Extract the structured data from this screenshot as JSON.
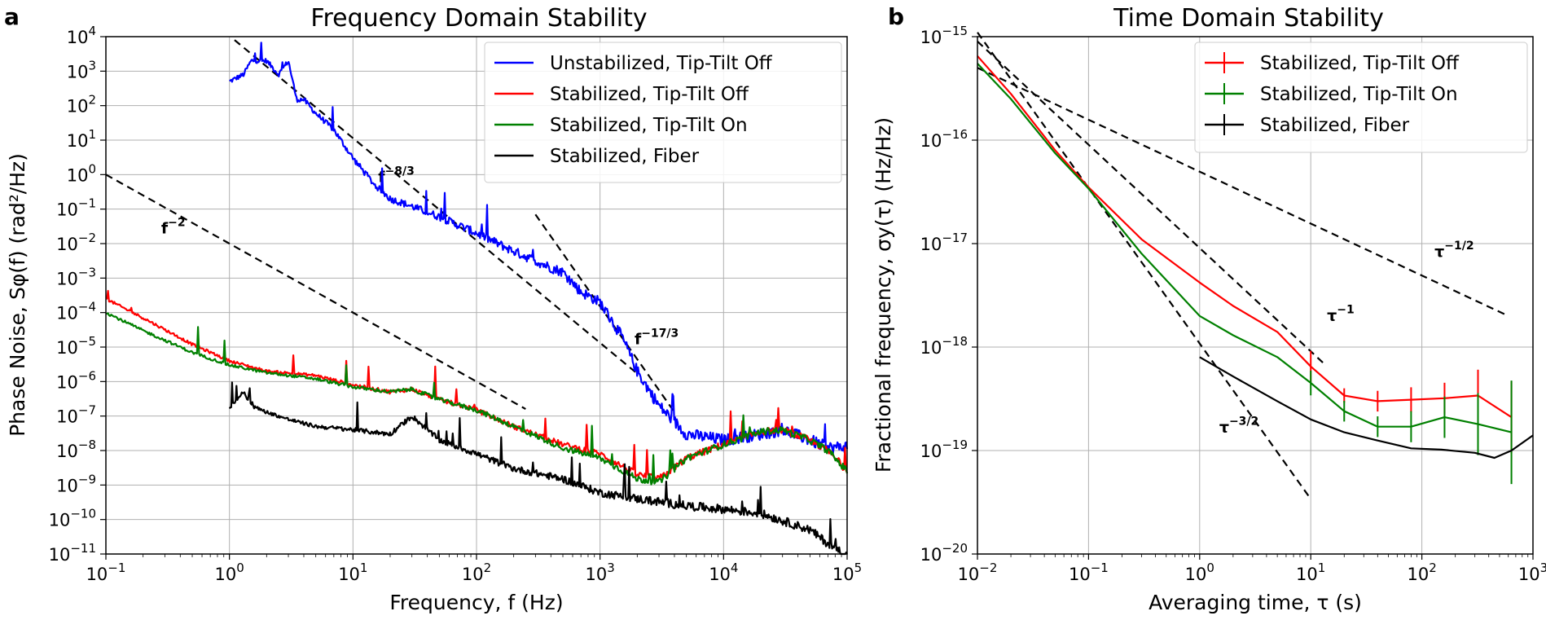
{
  "chart_data": [
    {
      "panel": "a",
      "type": "line",
      "title": "Frequency Domain Stability",
      "xlabel": "Frequency, f (Hz)",
      "ylabel": "Phase Noise, Sφ(f) (rad²/Hz)",
      "xscale": "log",
      "yscale": "log",
      "xlim": [
        0.1,
        100000
      ],
      "ylim": [
        1e-11,
        10000
      ],
      "xticks": [
        {
          "value": 0.1,
          "base": "10",
          "exp": "−1"
        },
        {
          "value": 1,
          "base": "10",
          "exp": "0"
        },
        {
          "value": 10,
          "base": "10",
          "exp": "1"
        },
        {
          "value": 100,
          "base": "10",
          "exp": "2"
        },
        {
          "value": 1000,
          "base": "10",
          "exp": "3"
        },
        {
          "value": 10000,
          "base": "10",
          "exp": "4"
        },
        {
          "value": 100000,
          "base": "10",
          "exp": "5"
        }
      ],
      "yticks": [
        {
          "value": 1e-11,
          "base": "10",
          "exp": "−11"
        },
        {
          "value": 1e-10,
          "base": "10",
          "exp": "−10"
        },
        {
          "value": 1e-09,
          "base": "10",
          "exp": "−9"
        },
        {
          "value": 1e-08,
          "base": "10",
          "exp": "−8"
        },
        {
          "value": 1e-07,
          "base": "10",
          "exp": "−7"
        },
        {
          "value": 1e-06,
          "base": "10",
          "exp": "−6"
        },
        {
          "value": 1e-05,
          "base": "10",
          "exp": "−5"
        },
        {
          "value": 0.0001,
          "base": "10",
          "exp": "−4"
        },
        {
          "value": 0.001,
          "base": "10",
          "exp": "−3"
        },
        {
          "value": 0.01,
          "base": "10",
          "exp": "−2"
        },
        {
          "value": 0.1,
          "base": "10",
          "exp": "−1"
        },
        {
          "value": 1,
          "base": "10",
          "exp": "0"
        },
        {
          "value": 10,
          "base": "10",
          "exp": "1"
        },
        {
          "value": 100,
          "base": "10",
          "exp": "2"
        },
        {
          "value": 1000,
          "base": "10",
          "exp": "3"
        },
        {
          "value": 10000,
          "base": "10",
          "exp": "4"
        }
      ],
      "grid": true,
      "legend": "top-right",
      "series": [
        {
          "name": "Unstabilized, Tip-Tilt Off",
          "color": "#0000ff",
          "noise": 0.35,
          "x": [
            1,
            1.3,
            1.5,
            2,
            2.5,
            3,
            3.5,
            4,
            5,
            7,
            10,
            15,
            20,
            30,
            50,
            100,
            200,
            400,
            500,
            700,
            1000,
            1500,
            2000,
            3000,
            5000,
            10000,
            20000,
            30000,
            50000,
            70000,
            100000
          ],
          "y": [
            500,
            800,
            2000,
            2000,
            800,
            2000,
            150,
            150,
            60,
            20,
            3,
            0.5,
            0.2,
            0.12,
            0.06,
            0.02,
            0.006,
            0.002,
            0.0015,
            0.0004,
            0.0002,
            2e-05,
            2e-06,
            2e-07,
            3e-08,
            2e-08,
            3e-08,
            4e-08,
            2e-08,
            1.2e-08,
            1.3e-08
          ]
        },
        {
          "name": "Stabilized, Tip-Tilt Off",
          "color": "#ff0000",
          "noise": 0.2,
          "x": [
            0.1,
            0.2,
            0.5,
            1,
            2,
            5,
            10,
            20,
            30,
            50,
            100,
            200,
            500,
            1000,
            2000,
            3000,
            5000,
            10000,
            20000,
            30000,
            50000,
            70000,
            100000
          ],
          "y": [
            0.00025,
            7e-05,
            1.2e-05,
            4e-06,
            2e-06,
            1.5e-06,
            8e-07,
            5e-07,
            6e-07,
            3e-07,
            1.5e-07,
            5e-08,
            1.5e-08,
            8e-09,
            2e-09,
            1.5e-09,
            6e-09,
            1.5e-08,
            3.5e-08,
            4e-08,
            2e-08,
            1e-08,
            2.5e-09
          ]
        },
        {
          "name": "Stabilized, Tip-Tilt On",
          "color": "#008000",
          "noise": 0.2,
          "x": [
            0.1,
            0.2,
            0.5,
            1,
            2,
            5,
            10,
            20,
            30,
            50,
            100,
            200,
            500,
            1000,
            2000,
            3000,
            5000,
            10000,
            20000,
            30000,
            50000,
            70000,
            100000
          ],
          "y": [
            0.0001,
            3e-05,
            7e-06,
            3e-06,
            1.8e-06,
            1.2e-06,
            7e-07,
            5e-07,
            6e-07,
            3e-07,
            1.5e-07,
            5e-08,
            1.2e-08,
            6e-09,
            1.5e-09,
            1.2e-09,
            6e-09,
            1.5e-08,
            3.5e-08,
            4e-08,
            2e-08,
            1e-08,
            2.5e-09
          ]
        },
        {
          "name": "Stabilized, Fiber",
          "color": "#000000",
          "noise": 0.25,
          "x": [
            1,
            1.3,
            1.5,
            2,
            3,
            5,
            10,
            20,
            30,
            50,
            100,
            200,
            500,
            1000,
            2000,
            5000,
            10000,
            20000,
            50000,
            70000,
            100000
          ],
          "y": [
            1.7e-07,
            5e-07,
            2e-07,
            1.3e-07,
            8e-08,
            5e-08,
            4e-08,
            3e-08,
            1e-07,
            2e-08,
            8e-09,
            3e-09,
            1.5e-09,
            6e-10,
            4e-10,
            2.5e-10,
            2e-10,
            1.5e-10,
            5e-11,
            2e-11,
            9e-12
          ]
        }
      ],
      "reference_lines": [
        {
          "label": "f",
          "exp": "−8/3",
          "x": [
            1.1,
            2000
          ],
          "y": [
            8000,
            1.7e-06
          ],
          "label_at": [
            16,
            0.6
          ]
        },
        {
          "label": "f",
          "exp": "−2",
          "x": [
            0.1,
            250
          ],
          "y": [
            1,
            1.6e-07
          ],
          "label_at": [
            0.28,
            0.02
          ]
        },
        {
          "label": "f",
          "exp": "−17/3",
          "x": [
            300,
            4000
          ],
          "y": [
            0.07,
            1.3e-07
          ],
          "label_at": [
            1900,
            1.2e-05
          ]
        }
      ]
    },
    {
      "panel": "b",
      "type": "line",
      "title": "Time Domain Stability",
      "xlabel": "Averaging time, τ (s)",
      "ylabel": "Fractional frequency, σy(τ) (Hz/Hz)",
      "xscale": "log",
      "yscale": "log",
      "xlim": [
        0.01,
        1000
      ],
      "ylim": [
        1e-20,
        1e-15
      ],
      "xticks": [
        {
          "value": 0.01,
          "base": "10",
          "exp": "−2"
        },
        {
          "value": 0.1,
          "base": "10",
          "exp": "−1"
        },
        {
          "value": 1,
          "base": "10",
          "exp": "0"
        },
        {
          "value": 10,
          "base": "10",
          "exp": "1"
        },
        {
          "value": 100,
          "base": "10",
          "exp": "2"
        },
        {
          "value": 1000,
          "base": "10",
          "exp": "3"
        }
      ],
      "yticks": [
        {
          "value": 1e-20,
          "base": "10",
          "exp": "−20"
        },
        {
          "value": 1e-19,
          "base": "10",
          "exp": "−19"
        },
        {
          "value": 1e-18,
          "base": "10",
          "exp": "−18"
        },
        {
          "value": 1e-17,
          "base": "10",
          "exp": "−17"
        },
        {
          "value": 1e-16,
          "base": "10",
          "exp": "−16"
        },
        {
          "value": 1e-15,
          "base": "10",
          "exp": "−15"
        }
      ],
      "grid": true,
      "legend": "top-right",
      "series": [
        {
          "name": "Stabilized, Tip-Tilt Off",
          "color": "#ff0000",
          "x": [
            0.01,
            0.02,
            0.05,
            0.1,
            0.3,
            1,
            2,
            5,
            10,
            20,
            40,
            80,
            160,
            320,
            640
          ],
          "y": [
            6.5e-16,
            2.8e-16,
            8e-17,
            3.5e-17,
            1.1e-17,
            4.2e-18,
            2.5e-18,
            1.4e-18,
            6.5e-19,
            3.4e-19,
            3e-19,
            3.1e-19,
            3.2e-19,
            3.4e-19,
            2.1e-19
          ],
          "err": [
            0,
            0,
            0,
            0,
            0,
            0,
            0,
            0,
            0.15,
            0.07,
            0.1,
            0.12,
            0.15,
            0.25,
            0.35
          ]
        },
        {
          "name": "Stabilized, Tip-Tilt On",
          "color": "#008000",
          "x": [
            0.01,
            0.02,
            0.05,
            0.1,
            0.3,
            1,
            2,
            5,
            10,
            20,
            40,
            80,
            160,
            320,
            640
          ],
          "y": [
            5.5e-16,
            2.5e-16,
            7.5e-17,
            3.4e-17,
            8e-18,
            2e-18,
            1.3e-18,
            8e-19,
            4.5e-19,
            2.4e-19,
            1.7e-19,
            1.7e-19,
            2.1e-19,
            1.8e-19,
            1.5e-19
          ],
          "err": [
            0,
            0,
            0,
            0,
            0,
            0,
            0,
            0,
            0.12,
            0.1,
            0.1,
            0.15,
            0.2,
            0.3,
            0.5
          ]
        },
        {
          "name": "Stabilized, Fiber",
          "color": "#000000",
          "x": [
            1,
            2,
            5,
            10,
            20,
            40,
            80,
            150,
            300,
            450,
            640,
            1000
          ],
          "y": [
            8e-19,
            5.2e-19,
            3e-19,
            2e-19,
            1.5e-19,
            1.25e-19,
            1.05e-19,
            1.02e-19,
            9.5e-20,
            8.5e-20,
            1e-19,
            1.4e-19
          ],
          "err": [
            0,
            0,
            0,
            0,
            0,
            0,
            0,
            0,
            0,
            0,
            0,
            0
          ]
        }
      ],
      "reference_lines": [
        {
          "label": "τ",
          "exp": "−1/2",
          "x": [
            0.01,
            600
          ],
          "y": [
            5e-16,
            2e-18
          ],
          "label_at": [
            130,
            7.5e-18
          ]
        },
        {
          "label": "τ",
          "exp": "−1",
          "x": [
            0.01,
            13
          ],
          "y": [
            9e-16,
            7e-19
          ],
          "label_at": [
            14,
            1.8e-18
          ]
        },
        {
          "label": "τ",
          "exp": "−3/2",
          "x": [
            0.01,
            10
          ],
          "y": [
            1.1e-15,
            3.4e-20
          ],
          "label_at": [
            1.5,
            1.5e-19
          ]
        }
      ]
    }
  ]
}
